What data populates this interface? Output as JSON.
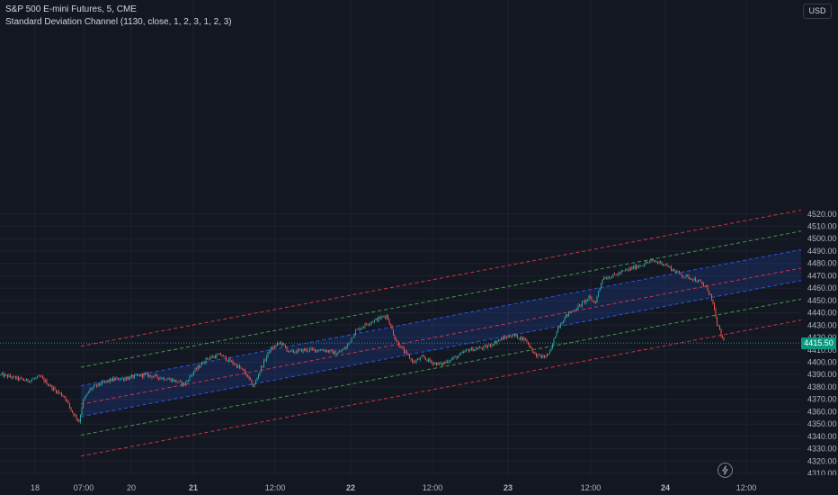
{
  "header": {
    "symbol_line": "S&P 500 E-mini Futures, 5, CME",
    "indicator_line": "Standard Deviation Channel (1130, close, 1, 2, 3, 1, 2, 3)"
  },
  "currency_button": "USD",
  "last_price_label": "4415.50",
  "colors": {
    "background": "#131722",
    "grid": "#1e222d",
    "up_candle": "#26a69a",
    "down_candle": "#ef5350",
    "channel_1": "#2962ff",
    "channel_fill": "rgba(41,98,255,0.16)",
    "channel_2": "#4caf50",
    "channel_3": "#f23645",
    "center_line": "#f23645",
    "last_price": "#089981"
  },
  "icons": {
    "replay": "lightning-icon"
  },
  "chart_data": {
    "type": "candlestick",
    "y_axis": {
      "range": [
        4305,
        4528
      ],
      "tick_labels": [
        "4310.00",
        "4320.00",
        "4330.00",
        "4340.00",
        "4350.00",
        "4360.00",
        "4370.00",
        "4380.00",
        "4390.00",
        "4400.00",
        "4410.00",
        "4420.00",
        "4430.00",
        "4440.00",
        "4450.00",
        "4460.00",
        "4470.00",
        "4480.00",
        "4490.00",
        "4500.00",
        "4510.00",
        "4520.00"
      ]
    },
    "x_axis": {
      "tick_labels": [
        "18",
        "07:00",
        "20",
        "21",
        "12:00",
        "22",
        "12:00",
        "23",
        "12:00",
        "24",
        "12:00"
      ],
      "bold_labels": [
        "21",
        "22",
        "23",
        "24"
      ]
    },
    "last_price": 4415.5,
    "price_path": [
      [
        0,
        4390
      ],
      [
        30,
        4385
      ],
      [
        45,
        4388
      ],
      [
        60,
        4378
      ],
      [
        72,
        4372
      ],
      [
        80,
        4360
      ],
      [
        88,
        4352
      ],
      [
        92,
        4368
      ],
      [
        100,
        4378
      ],
      [
        110,
        4382
      ],
      [
        125,
        4386
      ],
      [
        140,
        4387
      ],
      [
        160,
        4390
      ],
      [
        175,
        4388
      ],
      [
        190,
        4386
      ],
      [
        205,
        4382
      ],
      [
        215,
        4392
      ],
      [
        230,
        4403
      ],
      [
        245,
        4406
      ],
      [
        262,
        4398
      ],
      [
        272,
        4392
      ],
      [
        282,
        4380
      ],
      [
        290,
        4395
      ],
      [
        300,
        4410
      ],
      [
        312,
        4416
      ],
      [
        322,
        4408
      ],
      [
        340,
        4410
      ],
      [
        360,
        4410
      ],
      [
        375,
        4407
      ],
      [
        385,
        4412
      ],
      [
        395,
        4425
      ],
      [
        410,
        4432
      ],
      [
        420,
        4435
      ],
      [
        430,
        4438
      ],
      [
        440,
        4418
      ],
      [
        450,
        4408
      ],
      [
        460,
        4400
      ],
      [
        470,
        4404
      ],
      [
        480,
        4400
      ],
      [
        490,
        4398
      ],
      [
        500,
        4402
      ],
      [
        510,
        4405
      ],
      [
        520,
        4410
      ],
      [
        540,
        4412
      ],
      [
        555,
        4418
      ],
      [
        570,
        4422
      ],
      [
        585,
        4418
      ],
      [
        595,
        4406
      ],
      [
        605,
        4404
      ],
      [
        612,
        4408
      ],
      [
        620,
        4428
      ],
      [
        630,
        4438
      ],
      [
        645,
        4446
      ],
      [
        655,
        4452
      ],
      [
        662,
        4448
      ],
      [
        670,
        4468
      ],
      [
        682,
        4470
      ],
      [
        695,
        4474
      ],
      [
        710,
        4478
      ],
      [
        725,
        4482
      ],
      [
        738,
        4480
      ],
      [
        750,
        4474
      ],
      [
        760,
        4470
      ],
      [
        770,
        4468
      ],
      [
        780,
        4464
      ],
      [
        788,
        4458
      ],
      [
        793,
        4447
      ],
      [
        797,
        4432
      ],
      [
        802,
        4422
      ],
      [
        806,
        4415.5
      ]
    ],
    "channel": {
      "center_at_x90": 4366,
      "center_at_x890": 4476,
      "upper_1_offset": 15,
      "lower_1_offset": -10,
      "upper_2_offset": 30,
      "lower_2_offset": -25,
      "upper_3_offset": 47,
      "lower_3_offset": -42,
      "start_x": 90,
      "end_x": 892
    },
    "grid": true
  }
}
